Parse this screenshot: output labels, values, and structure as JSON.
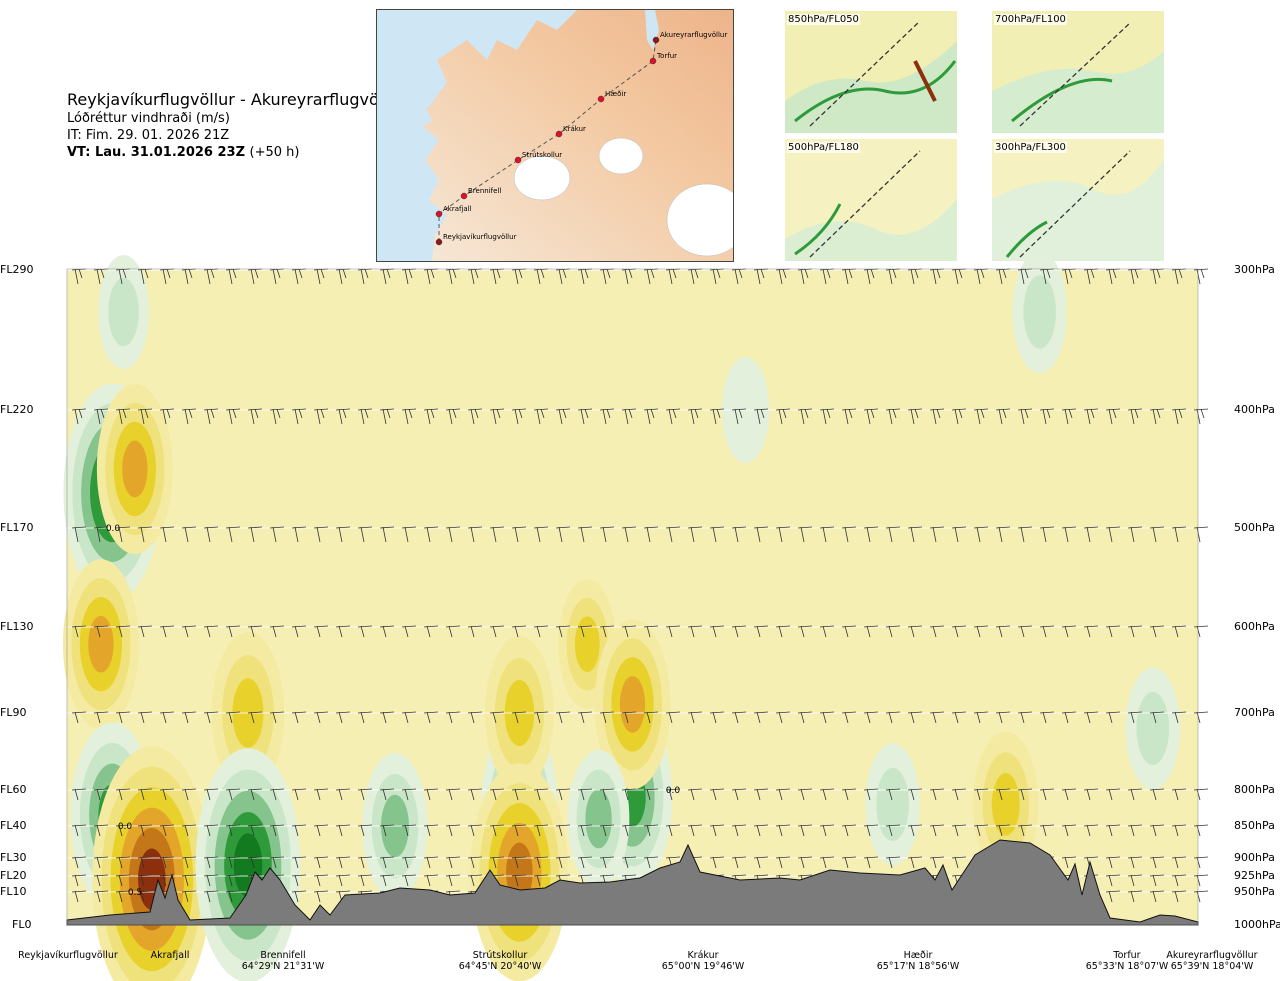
{
  "header": {
    "route": "Reykjavíkurflugvöllur - Akureyrarflugvöllur",
    "parameter": "Lóðréttur vindhraði (m/s)",
    "issue_time": "IT: Fim. 29. 01. 2026 21Z",
    "valid_time": "VT: Lau. 31.01.2026 23Z",
    "lead_time": "(+50 h)"
  },
  "route_map": {
    "waypoints": [
      "Reykjavíkurflugvöllur",
      "Akrafjall",
      "Brennifell",
      "Strútskollur",
      "Krákur",
      "Hæðir",
      "Torfur",
      "Akureyrarflugvöllur"
    ]
  },
  "level_panels": [
    {
      "label": "850hPa/FL050"
    },
    {
      "label": "700hPa/FL100"
    },
    {
      "label": "500hPa/FL180"
    },
    {
      "label": "300hPa/FL300"
    }
  ],
  "chart_data": {
    "type": "heatmap",
    "title": "Lóðréttur vindhraði (m/s)",
    "y_left_ticks": [
      "FL290",
      "FL220",
      "FL170",
      "FL130",
      "FL90",
      "FL60",
      "FL40",
      "FL30",
      "FL20",
      "FL10",
      "FL0"
    ],
    "y_right_ticks": [
      "300hPa",
      "400hPa",
      "500hPa",
      "600hPa",
      "700hPa",
      "800hPa",
      "850hPa",
      "900hPa",
      "925hPa",
      "950hPa",
      "1000hPa"
    ],
    "pressure_levels_hPa": [
      300,
      400,
      500,
      600,
      700,
      800,
      850,
      900,
      925,
      950,
      1000
    ],
    "x_locations": [
      {
        "name": "Reykjavíkurflugvöllur",
        "coord": ""
      },
      {
        "name": "Akrafjall",
        "coord": ""
      },
      {
        "name": "Brennifell",
        "coord": "64°29'N 21°31'W"
      },
      {
        "name": "Strútskollur",
        "coord": "64°45'N 20°40'W"
      },
      {
        "name": "Krákur",
        "coord": "65°00'N 19°46'W"
      },
      {
        "name": "Hæðir",
        "coord": "65°17'N 18°56'W"
      },
      {
        "name": "Torfur",
        "coord": "65°33'N 18°07'W"
      },
      {
        "name": "Akureyrarflugvöllur",
        "coord": "65°39'N 18°04'W"
      }
    ],
    "contour_labels": [
      "0.0",
      "0.0",
      "0.5",
      "0.0"
    ],
    "cells": [
      {
        "x": 0.04,
        "p": 470,
        "v": -1.6
      },
      {
        "x": 0.06,
        "p": 450,
        "v": 1.0
      },
      {
        "x": 0.03,
        "p": 620,
        "v": 1.0
      },
      {
        "x": 0.04,
        "p": 835,
        "v": -1.2
      },
      {
        "x": 0.075,
        "p": 930,
        "v": 2.2
      },
      {
        "x": 0.16,
        "p": 700,
        "v": 0.9
      },
      {
        "x": 0.16,
        "p": 910,
        "v": -1.8
      },
      {
        "x": 0.29,
        "p": 850,
        "v": -0.7
      },
      {
        "x": 0.4,
        "p": 820,
        "v": -1.0
      },
      {
        "x": 0.4,
        "p": 700,
        "v": 0.8
      },
      {
        "x": 0.4,
        "p": 920,
        "v": 1.6
      },
      {
        "x": 0.46,
        "p": 620,
        "v": 0.5
      },
      {
        "x": 0.5,
        "p": 810,
        "v": -1.1
      },
      {
        "x": 0.5,
        "p": 690,
        "v": 1.0
      },
      {
        "x": 0.47,
        "p": 840,
        "v": -0.6
      },
      {
        "x": 0.05,
        "p": 330,
        "v": -0.3
      },
      {
        "x": 0.6,
        "p": 400,
        "v": -0.2
      },
      {
        "x": 0.86,
        "p": 330,
        "v": -0.4
      },
      {
        "x": 0.83,
        "p": 820,
        "v": 0.7
      },
      {
        "x": 0.73,
        "p": 820,
        "v": -0.4
      },
      {
        "x": 0.96,
        "p": 720,
        "v": -0.4
      }
    ],
    "colorscale": [
      {
        "v": -2.0,
        "color": "#4f7fb3"
      },
      {
        "v": -1.5,
        "color": "#127a1f"
      },
      {
        "v": -1.0,
        "color": "#2e9a3a"
      },
      {
        "v": -0.5,
        "color": "#85c48c"
      },
      {
        "v": -0.25,
        "color": "#c9e6c8"
      },
      {
        "v": -0.1,
        "color": "#e3f1dc"
      },
      {
        "v": 0.0,
        "color": "#fbf7cf"
      },
      {
        "v": 0.1,
        "color": "#f5eaa2"
      },
      {
        "v": 0.25,
        "color": "#efe27c"
      },
      {
        "v": 0.5,
        "color": "#e9d12c"
      },
      {
        "v": 1.0,
        "color": "#e3a62a"
      },
      {
        "v": 1.5,
        "color": "#c47718"
      },
      {
        "v": 2.0,
        "color": "#8c2f0d"
      }
    ],
    "terrain_color": "#7b7b7b"
  }
}
